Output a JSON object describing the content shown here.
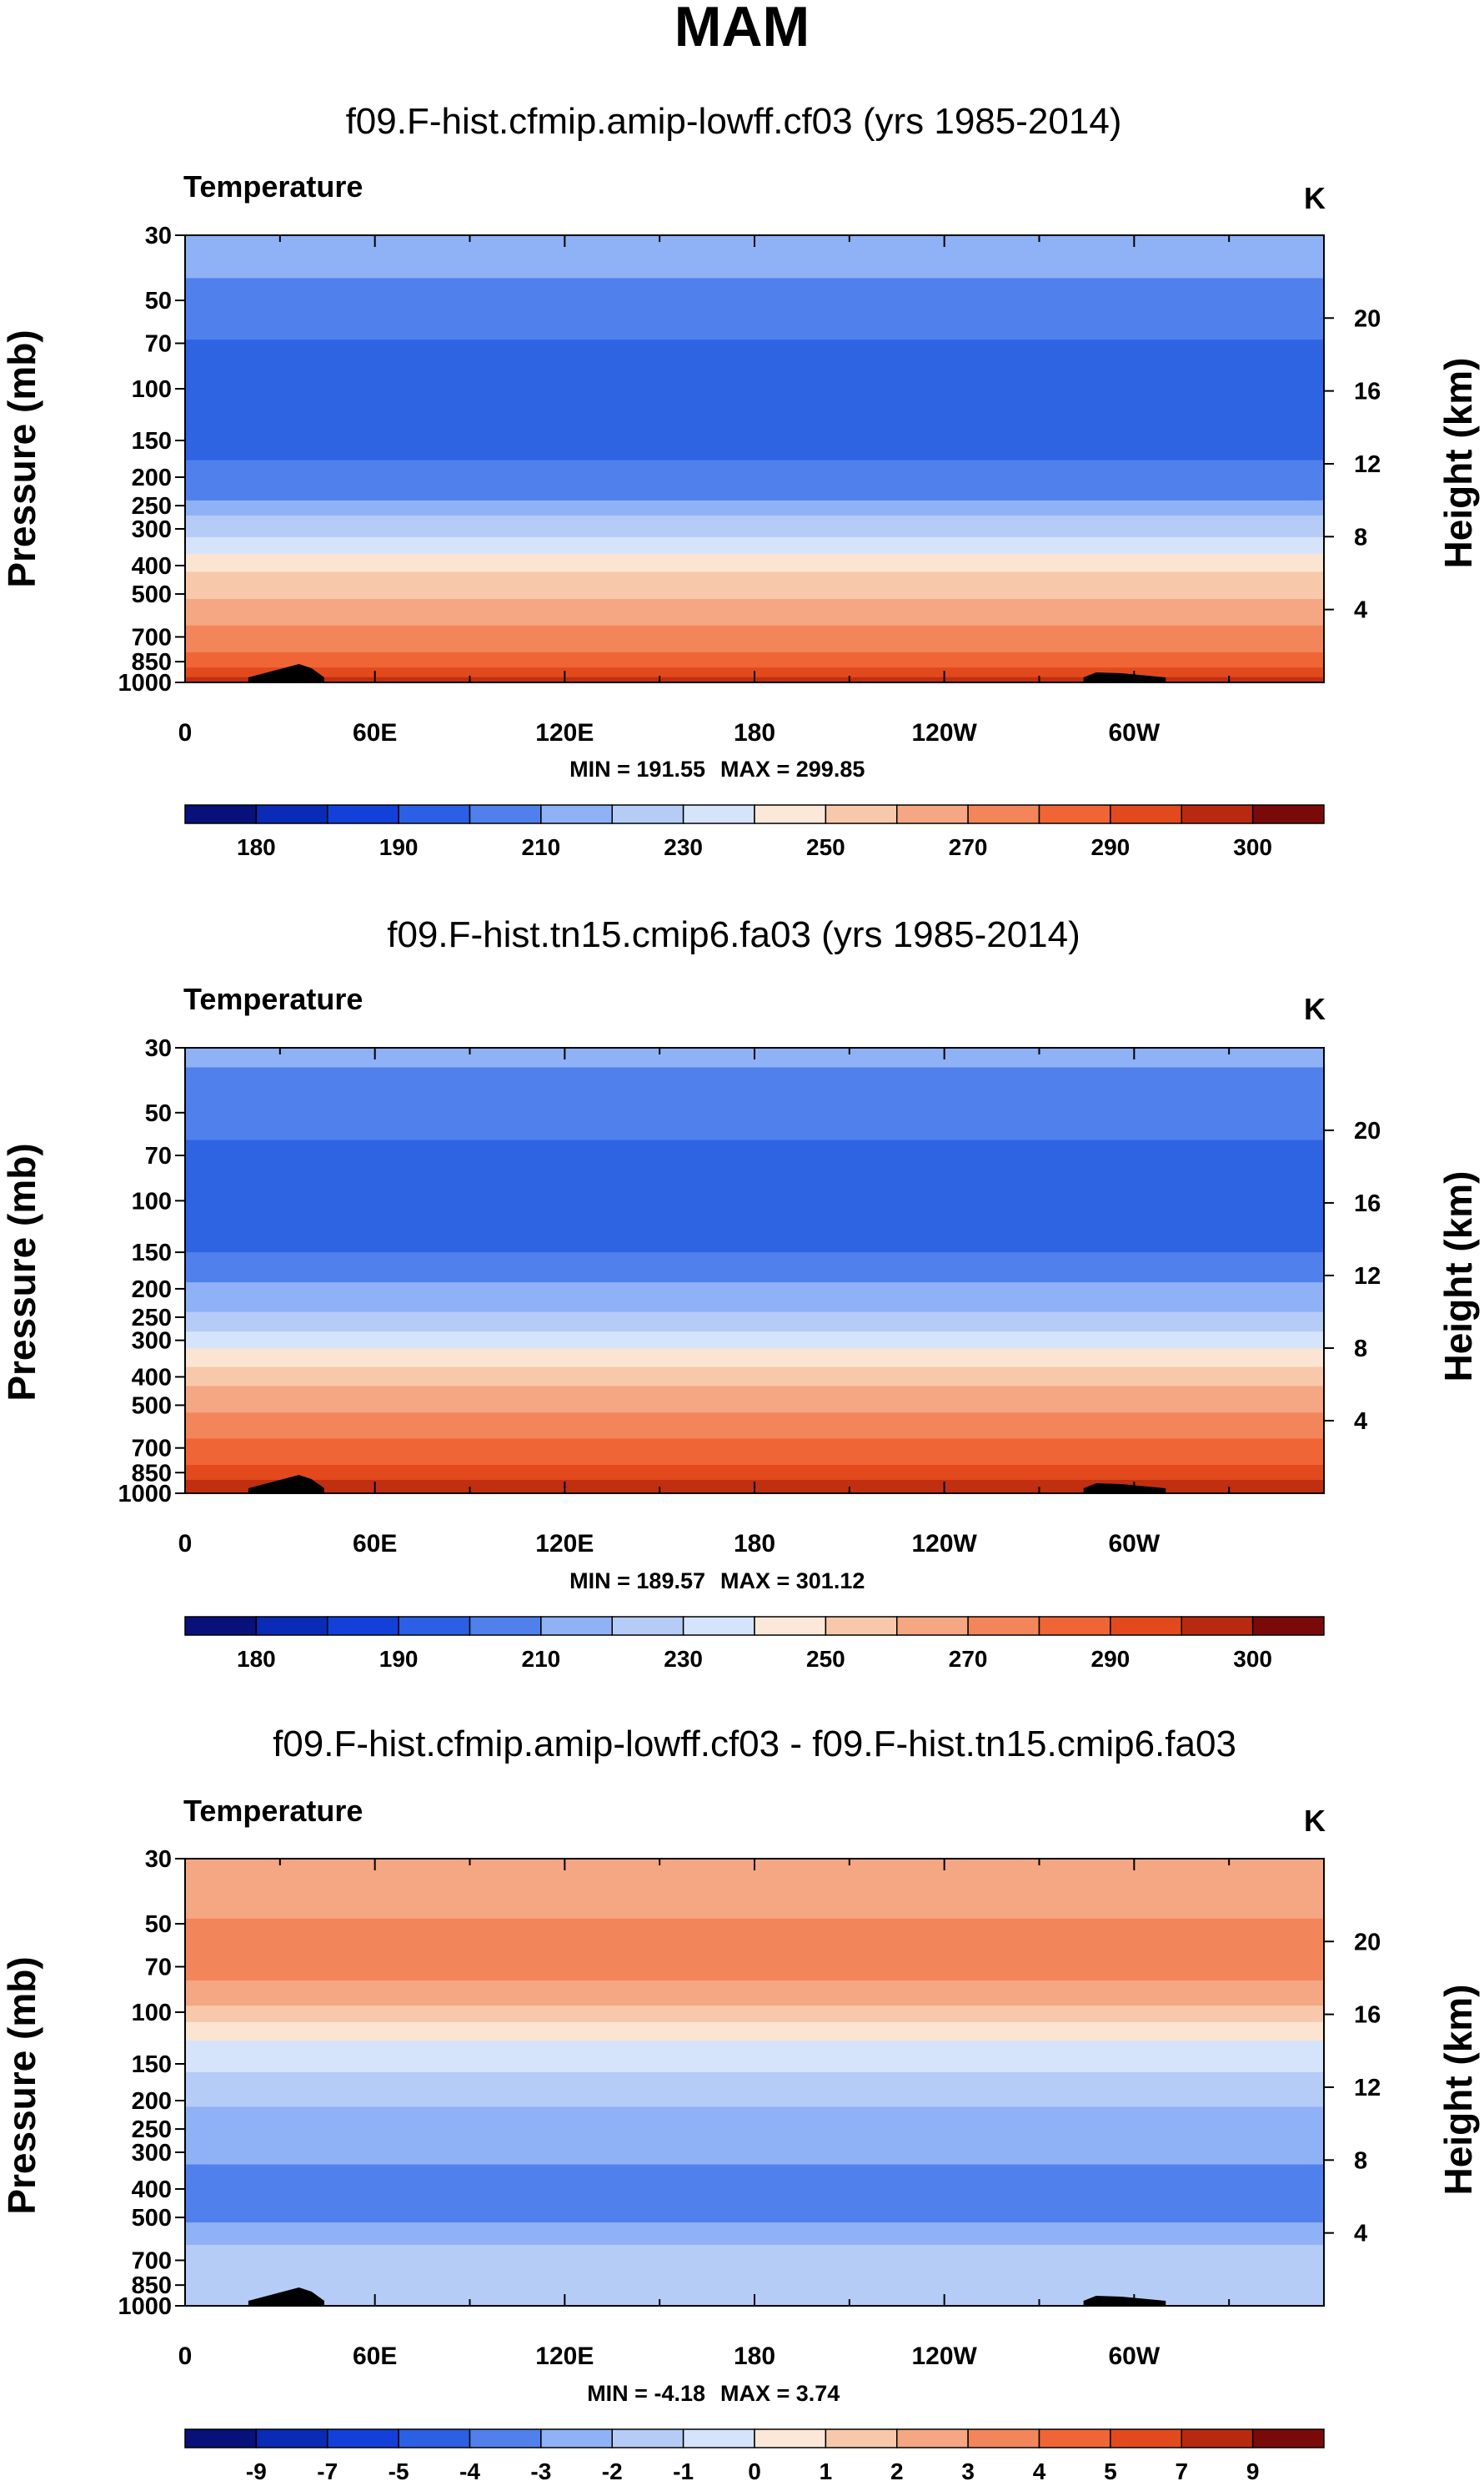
{
  "figure_title": "MAM",
  "chart_data": [
    {
      "type": "heatmap",
      "title": "f09.F-hist.cfmip.amip-lowff.cf03 (yrs 1985-2014)",
      "variable": "Temperature",
      "units": "K",
      "ylabel": "Pressure (mb)",
      "ylabel_right": "Height (km)",
      "x_ticks": [
        "0",
        "60E",
        "120E",
        "180",
        "120W",
        "60W"
      ],
      "y_ticks": [
        30,
        50,
        70,
        100,
        150,
        200,
        250,
        300,
        400,
        500,
        700,
        850,
        1000
      ],
      "y_right_ticks": [
        20,
        16,
        12,
        8,
        4
      ],
      "min_label": "MIN = 191.55",
      "max_label": "MAX = 299.85",
      "min": 191.55,
      "max": 299.85,
      "colorbar_ticks": [
        "180",
        "190",
        "210",
        "230",
        "250",
        "270",
        "290",
        "300"
      ],
      "band_colors": [
        "#8fb1f5",
        "#4f80ec",
        "#2e63e2",
        "#2e63e2",
        "#4f80ec",
        "#8fb1f5",
        "#b5ccf7",
        "#d6e4fb",
        "#fbe4d2",
        "#f8c8aa",
        "#f5a682",
        "#f3855a",
        "#f06535",
        "#e24a1d",
        "#c02f10"
      ],
      "band_bounds_mb": [
        30,
        42,
        68,
        135,
        175,
        240,
        270,
        320,
        365,
        420,
        520,
        640,
        790,
        890,
        960,
        1000
      ]
    },
    {
      "type": "heatmap",
      "title": "f09.F-hist.tn15.cmip6.fa03 (yrs 1985-2014)",
      "variable": "Temperature",
      "units": "K",
      "ylabel": "Pressure (mb)",
      "ylabel_right": "Height (km)",
      "x_ticks": [
        "0",
        "60E",
        "120E",
        "180",
        "120W",
        "60W"
      ],
      "y_ticks": [
        30,
        50,
        70,
        100,
        150,
        200,
        250,
        300,
        400,
        500,
        700,
        850,
        1000
      ],
      "y_right_ticks": [
        20,
        16,
        12,
        8,
        4
      ],
      "min_label": "MIN = 189.57",
      "max_label": "MAX = 301.12",
      "min": 189.57,
      "max": 301.12,
      "colorbar_ticks": [
        "180",
        "190",
        "210",
        "230",
        "250",
        "270",
        "290",
        "300"
      ],
      "band_colors": [
        "#8fb1f5",
        "#4f80ec",
        "#2e63e2",
        "#4f80ec",
        "#8fb1f5",
        "#b5ccf7",
        "#d6e4fb",
        "#fbe4d2",
        "#f8c8aa",
        "#f5a682",
        "#f3855a",
        "#f06535",
        "#e24a1d",
        "#c02f10"
      ],
      "band_bounds_mb": [
        30,
        35,
        62,
        150,
        190,
        240,
        280,
        320,
        370,
        430,
        530,
        650,
        800,
        900,
        1000
      ]
    },
    {
      "type": "heatmap",
      "title": "f09.F-hist.cfmip.amip-lowff.cf03 - f09.F-hist.tn15.cmip6.fa03",
      "variable": "Temperature",
      "units": "K",
      "ylabel": "Pressure (mb)",
      "ylabel_right": "Height (km)",
      "x_ticks": [
        "0",
        "60E",
        "120E",
        "180",
        "120W",
        "60W"
      ],
      "y_ticks": [
        30,
        50,
        70,
        100,
        150,
        200,
        250,
        300,
        400,
        500,
        700,
        850,
        1000
      ],
      "y_right_ticks": [
        20,
        16,
        12,
        8,
        4
      ],
      "min_label": "MIN = -4.18",
      "max_label": "MAX = 3.74",
      "min": -4.18,
      "max": 3.74,
      "colorbar_ticks": [
        "-9",
        "-7",
        "-5",
        "-4",
        "-3",
        "-2",
        "-1",
        "0",
        "1",
        "2",
        "3",
        "4",
        "5",
        "7",
        "9"
      ],
      "band_colors": [
        "#f5a682",
        "#f3855a",
        "#f5a682",
        "#f8c8aa",
        "#fbe4d2",
        "#d6e4fb",
        "#b5ccf7",
        "#8fb1f5",
        "#4f80ec",
        "#8fb1f5",
        "#b5ccf7"
      ],
      "band_bounds_mb": [
        30,
        48,
        78,
        95,
        108,
        125,
        160,
        210,
        330,
        520,
        620,
        1000
      ]
    }
  ],
  "colorbar_colors": [
    "#08107a",
    "#0a2bb5",
    "#1240d8",
    "#2b5fe4",
    "#4f80ec",
    "#8fb1f5",
    "#b5ccf7",
    "#d6e4fb",
    "#fbe8d8",
    "#f8c8aa",
    "#f5a682",
    "#f3855a",
    "#f06535",
    "#e24a1d",
    "#b82a10",
    "#7a0a0a"
  ],
  "topography_color": "#000000"
}
